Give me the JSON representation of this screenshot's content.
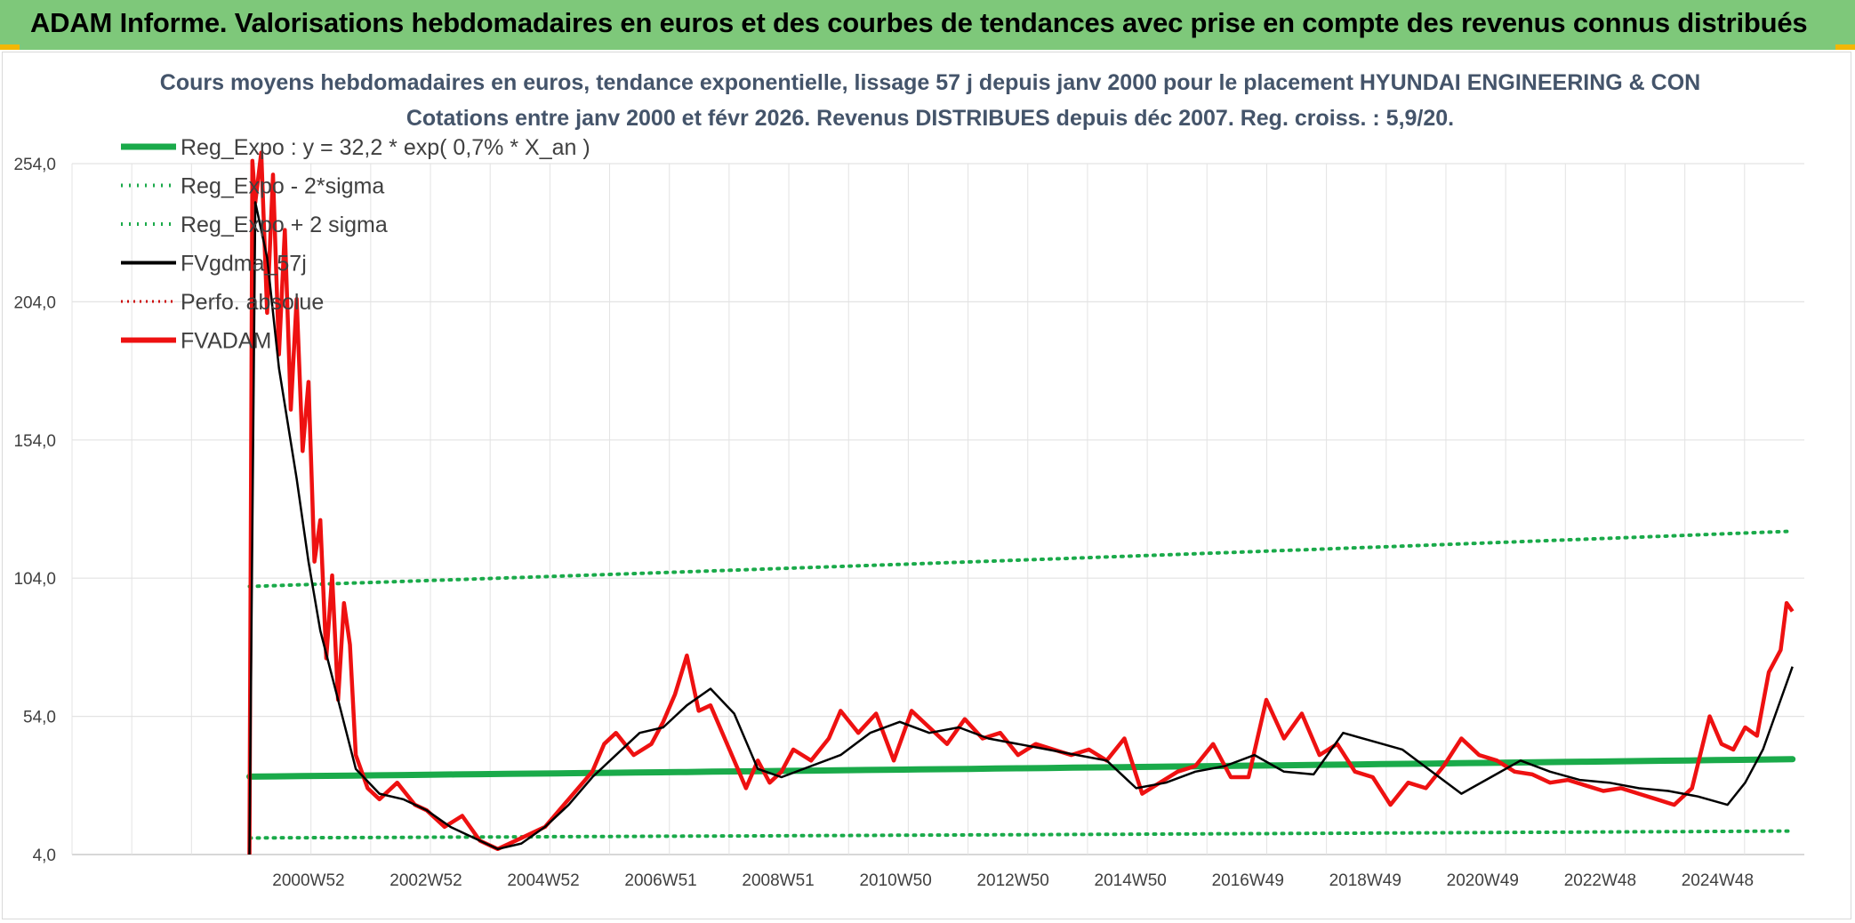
{
  "header": {
    "title": "ADAM Informe. Valorisations hebdomadaires en euros et des courbes de tendances avec prise en compte des revenus connus distribués"
  },
  "colors": {
    "banner": "#7ec87a",
    "reg_expo": "#1aaa4a",
    "fvgdma": "#000000",
    "fvadam": "#ee1111",
    "perfo": "#cc0000",
    "grid": "#e3e3e3"
  },
  "chart_data": {
    "type": "line",
    "title": "Cours moyens hebdomadaires en euros, tendance exponentielle, lissage 57 j depuis janv 2000 pour le placement HYUNDAI ENGINEERING & CON",
    "subtitle": "Cotations entre janv 2000 et févr 2026. Revenus DISTRIBUES depuis déc 2007. Reg. croiss. : 5,9/20.",
    "xlabel": "",
    "ylabel": "",
    "ylim": [
      4,
      254
    ],
    "y_ticks": [
      "254,0",
      "204,0",
      "154,0",
      "104,0",
      "54,0",
      "4,0"
    ],
    "x_ticks": [
      "2000W52",
      "2002W52",
      "2004W52",
      "2006W51",
      "2008W51",
      "2010W50",
      "2012W50",
      "2014W50",
      "2016W49",
      "2018W49",
      "2020W49",
      "2022W48",
      "2024W48"
    ],
    "grid": true,
    "legend_position": "top-left",
    "legend": [
      "Reg_Expo : y = 32,2 * exp( 0,7% *  X_an )",
      "Reg_Expo - 2*sigma",
      "Reg_Expo + 2 sigma",
      "FVgdma_57j",
      "Perfo. absolue",
      "FVADAM"
    ],
    "series": [
      {
        "name": "Reg_Expo : y = 32,2 * exp( 0,7% *  X_an )",
        "style": "solid-thick",
        "x": [
          2000.0,
          2026.1
        ],
        "values": [
          32.2,
          38.5
        ]
      },
      {
        "name": "Reg_Expo - 2*sigma",
        "style": "dotted",
        "x": [
          2000.0,
          2026.1
        ],
        "values": [
          10.0,
          12.5
        ]
      },
      {
        "name": "Reg_Expo + 2 sigma",
        "style": "dotted",
        "x": [
          2000.0,
          2026.1
        ],
        "values": [
          101.0,
          121.0
        ]
      },
      {
        "name": "FVgdma_57j",
        "style": "solid",
        "x": [
          2000.0,
          2000.1,
          2000.3,
          2000.5,
          2000.8,
          2001.0,
          2001.2,
          2001.5,
          2001.8,
          2002.2,
          2002.6,
          2003.0,
          2003.4,
          2003.8,
          2004.2,
          2004.6,
          2005.0,
          2005.4,
          2005.8,
          2006.2,
          2006.6,
          2007.0,
          2007.4,
          2007.8,
          2008.2,
          2008.6,
          2009.0,
          2009.5,
          2010.0,
          2010.5,
          2011.0,
          2011.5,
          2012.0,
          2012.5,
          2013.0,
          2013.5,
          2014.0,
          2014.5,
          2015.0,
          2015.5,
          2016.0,
          2016.5,
          2017.0,
          2017.5,
          2018.0,
          2018.5,
          2019.0,
          2019.5,
          2020.0,
          2020.5,
          2021.0,
          2021.5,
          2022.0,
          2022.5,
          2023.0,
          2023.5,
          2024.0,
          2024.5,
          2025.0,
          2025.3,
          2025.6,
          2025.9,
          2026.1
        ],
        "values": [
          4,
          240,
          220,
          180,
          140,
          110,
          85,
          60,
          35,
          26,
          24,
          20,
          14,
          10,
          6,
          8,
          14,
          22,
          32,
          40,
          48,
          50,
          58,
          64,
          55,
          35,
          32,
          36,
          40,
          48,
          52,
          48,
          50,
          46,
          44,
          42,
          40,
          38,
          28,
          30,
          34,
          36,
          40,
          34,
          33,
          48,
          45,
          42,
          34,
          26,
          32,
          38,
          34,
          31,
          30,
          28,
          27,
          25,
          22,
          30,
          42,
          60,
          72
        ]
      },
      {
        "name": "Perfo. absolue",
        "style": "dotted",
        "x": [],
        "values": []
      },
      {
        "name": "FVADAM",
        "style": "solid-thick",
        "x": [
          2000.0,
          2000.05,
          2000.1,
          2000.2,
          2000.3,
          2000.4,
          2000.5,
          2000.6,
          2000.7,
          2000.8,
          2000.9,
          2001.0,
          2001.1,
          2001.2,
          2001.3,
          2001.4,
          2001.5,
          2001.6,
          2001.7,
          2001.8,
          2002.0,
          2002.2,
          2002.5,
          2002.8,
          2003.0,
          2003.3,
          2003.6,
          2003.9,
          2004.2,
          2004.6,
          2005.0,
          2005.4,
          2005.8,
          2006.0,
          2006.2,
          2006.5,
          2006.8,
          2007.0,
          2007.2,
          2007.4,
          2007.6,
          2007.8,
          2008.0,
          2008.2,
          2008.4,
          2008.6,
          2008.8,
          2009.0,
          2009.2,
          2009.5,
          2009.8,
          2010.0,
          2010.3,
          2010.6,
          2010.9,
          2011.2,
          2011.5,
          2011.8,
          2012.1,
          2012.4,
          2012.7,
          2013.0,
          2013.3,
          2013.6,
          2013.9,
          2014.2,
          2014.5,
          2014.8,
          2015.1,
          2015.4,
          2015.7,
          2016.0,
          2016.3,
          2016.6,
          2016.9,
          2017.2,
          2017.5,
          2017.8,
          2018.1,
          2018.4,
          2018.7,
          2019.0,
          2019.3,
          2019.6,
          2019.9,
          2020.2,
          2020.5,
          2020.8,
          2021.1,
          2021.4,
          2021.7,
          2022.0,
          2022.3,
          2022.6,
          2022.9,
          2023.2,
          2023.5,
          2023.8,
          2024.1,
          2024.4,
          2024.7,
          2024.9,
          2025.1,
          2025.3,
          2025.5,
          2025.7,
          2025.9,
          2026.0,
          2026.1
        ],
        "values": [
          4,
          255,
          240,
          258,
          200,
          250,
          185,
          230,
          165,
          205,
          150,
          175,
          110,
          125,
          75,
          105,
          60,
          95,
          80,
          40,
          28,
          24,
          30,
          22,
          20,
          14,
          18,
          9,
          6,
          10,
          14,
          24,
          34,
          44,
          48,
          40,
          44,
          52,
          62,
          76,
          56,
          58,
          48,
          38,
          28,
          38,
          30,
          34,
          42,
          38,
          46,
          56,
          48,
          55,
          38,
          56,
          50,
          44,
          53,
          46,
          48,
          40,
          44,
          42,
          40,
          42,
          38,
          46,
          26,
          30,
          34,
          36,
          44,
          32,
          32,
          60,
          46,
          55,
          40,
          44,
          34,
          32,
          22,
          30,
          28,
          36,
          46,
          40,
          38,
          34,
          33,
          30,
          31,
          29,
          27,
          28,
          26,
          24,
          22,
          28,
          54,
          44,
          42,
          50,
          47,
          70,
          78,
          95,
          92
        ]
      }
    ]
  }
}
